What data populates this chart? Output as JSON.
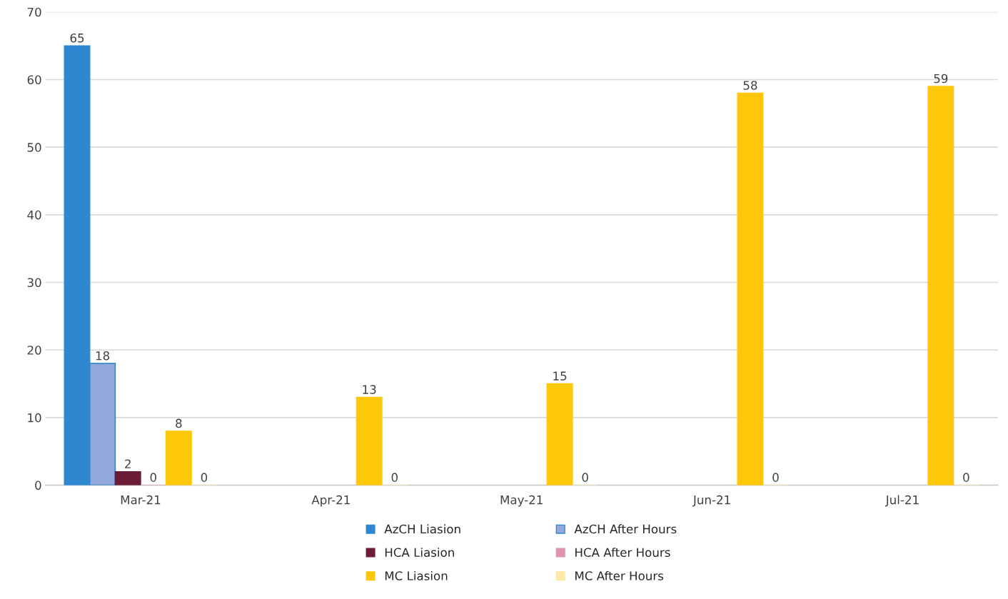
{
  "chart_data": {
    "type": "bar",
    "categories": [
      "Mar-21",
      "Apr-21",
      "May-21",
      "Jun-21",
      "Jul-21"
    ],
    "series": [
      {
        "name": "AzCH Liasion",
        "color": "#2e87cf",
        "values": [
          65,
          null,
          null,
          null,
          null
        ]
      },
      {
        "name": "AzCH After Hours",
        "color": "#93a9dc",
        "values": [
          18,
          null,
          null,
          null,
          null
        ]
      },
      {
        "name": "HCA Liasion",
        "color": "#6b1c37",
        "values": [
          2,
          null,
          null,
          null,
          null
        ]
      },
      {
        "name": "HCA After Hours",
        "color": "#e093a9",
        "values": [
          0,
          null,
          null,
          null,
          null
        ]
      },
      {
        "name": "MC Liasion",
        "color": "#fdc80a",
        "values": [
          8,
          13,
          15,
          58,
          59
        ]
      },
      {
        "name": "MC After Hours",
        "color": "#fde8a8",
        "values": [
          0,
          0,
          0,
          0,
          0
        ]
      }
    ],
    "ylim": [
      0,
      70
    ],
    "yticks": [
      0,
      10,
      20,
      30,
      40,
      50,
      60,
      70
    ],
    "grid": "y",
    "legend": "bottom",
    "data_labels": true
  }
}
